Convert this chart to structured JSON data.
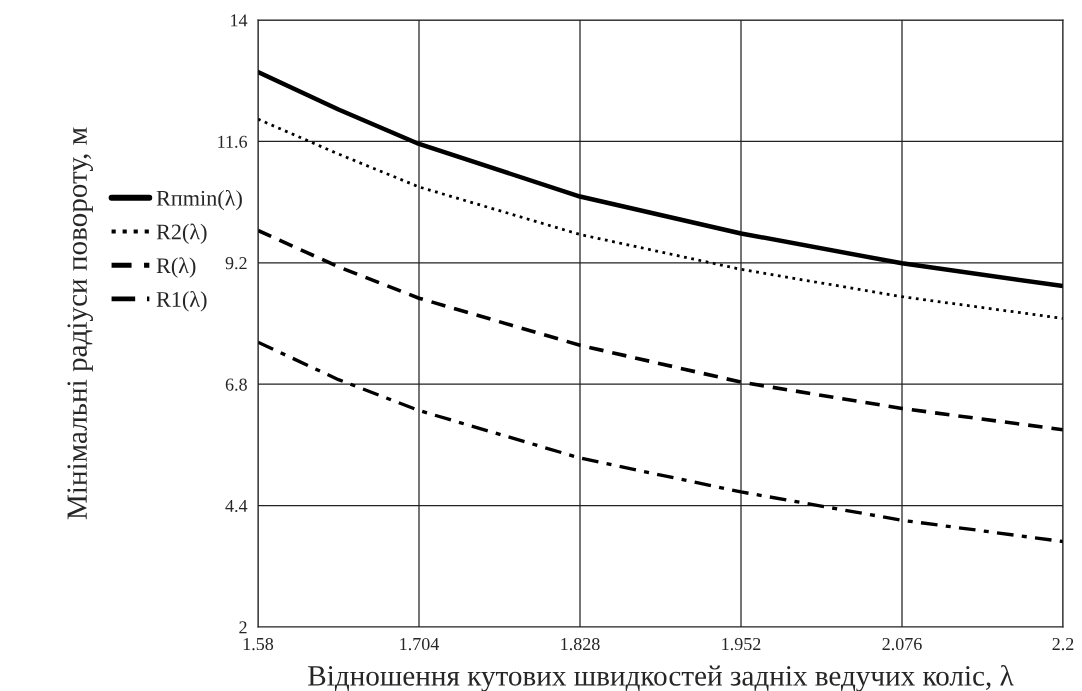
{
  "chart_data": {
    "type": "line",
    "xlabel": "Відношення кутових швидкостей задніх ведучих коліс, λ",
    "ylabel": "Мінімальні радіуси повороту, м",
    "xlim": [
      1.58,
      2.2
    ],
    "xticks": [
      1.58,
      1.704,
      1.828,
      1.952,
      2.076,
      2.2
    ],
    "ylim": [
      2,
      14
    ],
    "yticks": [
      2,
      4.4,
      6.8,
      9.2,
      11.6,
      14
    ],
    "grid": true,
    "legend": "left",
    "series": [
      {
        "name": "Rпmin(λ)",
        "color": "#000000",
        "line_style": "solid",
        "x": [
          1.58,
          1.642,
          1.704,
          1.828,
          1.952,
          2.076,
          2.2
        ],
        "values": [
          12.97,
          12.23,
          11.55,
          10.51,
          9.78,
          9.19,
          8.74
        ]
      },
      {
        "name": "R2(λ)",
        "color": "#000000",
        "line_style": "dotted",
        "x": [
          1.58,
          1.642,
          1.704,
          1.828,
          1.952,
          2.076,
          2.2
        ],
        "values": [
          12.04,
          11.35,
          10.7,
          9.76,
          9.07,
          8.53,
          8.1
        ]
      },
      {
        "name": "R(λ)",
        "color": "#000000",
        "line_style": "dashed",
        "x": [
          1.58,
          1.642,
          1.704,
          1.828,
          1.952,
          2.076,
          2.2
        ],
        "values": [
          9.84,
          9.12,
          8.5,
          7.57,
          6.84,
          6.32,
          5.9
        ]
      },
      {
        "name": "R1(λ)",
        "color": "#000000",
        "line_style": "dashdot",
        "x": [
          1.58,
          1.642,
          1.704,
          1.828,
          1.952,
          2.076,
          2.2
        ],
        "values": [
          7.63,
          6.89,
          6.28,
          5.34,
          4.67,
          4.11,
          3.69
        ]
      }
    ]
  }
}
